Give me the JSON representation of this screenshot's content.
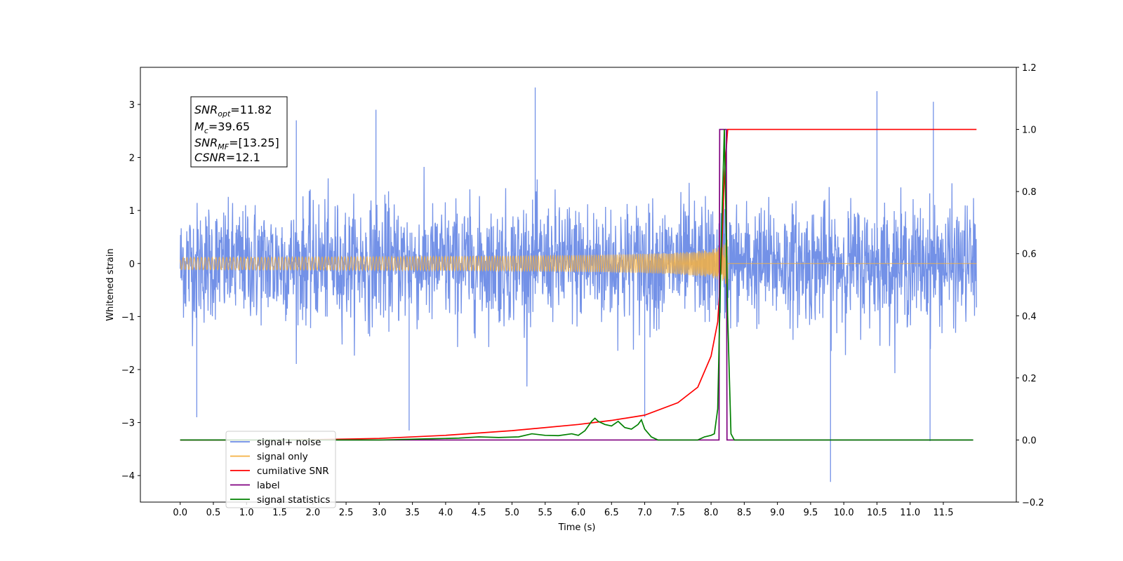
{
  "chart_data": {
    "type": "line",
    "xlabel": "Time (s)",
    "ylabel": "Whitened strain",
    "xlim": [
      -0.6,
      12.6
    ],
    "ylim": [
      -4.5,
      3.7
    ],
    "y2lim": [
      -0.2,
      1.2
    ],
    "x_ticks": [
      0.0,
      0.5,
      1.0,
      1.5,
      2.0,
      2.5,
      3.0,
      3.5,
      4.0,
      4.5,
      5.0,
      5.5,
      6.0,
      6.5,
      7.0,
      7.5,
      8.0,
      8.5,
      9.0,
      9.5,
      10.0,
      10.5,
      11.0,
      11.5
    ],
    "x_tick_labels": [
      "0.0",
      "0.5",
      "1.0",
      "1.5",
      "2.0",
      "2.5",
      "3.0",
      "3.5",
      "4.0",
      "4.5",
      "5.0",
      "5.5",
      "6.0",
      "6.5",
      "7.0",
      "7.5",
      "8.0",
      "8.5",
      "9.0",
      "9.5",
      "10.0",
      "10.5",
      "11.0",
      "11.5"
    ],
    "y_ticks": [
      -4,
      -3,
      -2,
      -1,
      0,
      1,
      2,
      3
    ],
    "y_tick_labels": [
      "−4",
      "−3",
      "−2",
      "−1",
      "0",
      "1",
      "2",
      "3"
    ],
    "y2_ticks": [
      -0.2,
      0.0,
      0.2,
      0.4,
      0.6,
      0.8,
      1.0,
      1.2
    ],
    "y2_tick_labels": [
      "−0.2",
      "0.0",
      "0.2",
      "0.4",
      "0.6",
      "0.8",
      "1.0",
      "1.2"
    ],
    "grid": false,
    "legend_position": "lower-left",
    "series": [
      {
        "name": "signal+ noise",
        "axis": "left",
        "color": "#6c8be6",
        "description": "noise-dominated whitened strain, 0.0–12.0 s, amplitude ~ ±1.5 with spikes to +3.3 and -4.1",
        "x_range": [
          0.0,
          12.0
        ],
        "typical_amplitude": 1.5,
        "max": 3.32,
        "min": -4.12
      },
      {
        "name": "signal only",
        "axis": "left",
        "color": "#f5b041",
        "description": "chirp signal growing until merger near 8.25 s",
        "x_range": [
          0.0,
          12.0
        ],
        "merger_time": 8.25,
        "peak_amplitude": 1.35
      },
      {
        "name": "cumilative SNR",
        "axis": "right",
        "color": "#ff0000",
        "x": [
          0.0,
          1.0,
          2.0,
          3.0,
          4.0,
          5.0,
          6.0,
          6.5,
          7.0,
          7.5,
          7.8,
          8.0,
          8.1,
          8.15,
          8.2,
          8.25,
          8.3,
          9.0,
          10.0,
          11.0,
          12.0
        ],
        "values": [
          0.0,
          0.0,
          0.001,
          0.005,
          0.015,
          0.03,
          0.05,
          0.063,
          0.08,
          0.12,
          0.17,
          0.27,
          0.38,
          0.55,
          0.85,
          1.0,
          1.0,
          1.0,
          1.0,
          1.0,
          1.0
        ]
      },
      {
        "name": "label",
        "axis": "right",
        "color": "#800080",
        "x": [
          0.0,
          8.12,
          8.13,
          8.23,
          8.24,
          11.95
        ],
        "values": [
          0.0,
          0.0,
          1.0,
          1.0,
          0.0,
          0.0
        ]
      },
      {
        "name": "signal statistics",
        "axis": "right",
        "color": "#008000",
        "x": [
          0.0,
          3.0,
          3.8,
          4.2,
          4.5,
          4.8,
          5.1,
          5.3,
          5.5,
          5.7,
          5.9,
          6.0,
          6.1,
          6.2,
          6.25,
          6.3,
          6.4,
          6.5,
          6.6,
          6.7,
          6.8,
          6.9,
          6.95,
          7.0,
          7.1,
          7.2,
          7.5,
          7.8,
          7.9,
          8.0,
          8.05,
          8.1,
          8.15,
          8.2,
          8.25,
          8.3,
          8.35,
          11.95
        ],
        "values": [
          0.0,
          0.0,
          0.004,
          0.006,
          0.01,
          0.008,
          0.01,
          0.02,
          0.015,
          0.014,
          0.02,
          0.015,
          0.03,
          0.06,
          0.07,
          0.06,
          0.05,
          0.045,
          0.06,
          0.04,
          0.035,
          0.05,
          0.065,
          0.035,
          0.01,
          0.0,
          0.0,
          0.0,
          0.01,
          0.015,
          0.02,
          0.1,
          0.6,
          1.0,
          0.4,
          0.02,
          0.0,
          0.0
        ]
      }
    ],
    "legend_entries": [
      {
        "label": "signal+ noise",
        "color": "#6c8be6"
      },
      {
        "label": "signal only",
        "color": "#f5b041"
      },
      {
        "label": "cumilative SNR",
        "color": "#ff0000"
      },
      {
        "label": "label",
        "color": "#800080"
      },
      {
        "label": "signal statistics",
        "color": "#008000"
      }
    ],
    "info_box": {
      "snr_opt_base": "SNR",
      "snr_opt_sub": "opt",
      "snr_opt_value": "=11.82",
      "mc_base": "M",
      "mc_sub": "c",
      "mc_value": "=39.65",
      "snr_mf_base": "SNR",
      "snr_mf_sub": "MF",
      "snr_mf_value": "=[13.25]",
      "csnr_base": "CSNR",
      "csnr_value": "=12.1"
    }
  }
}
